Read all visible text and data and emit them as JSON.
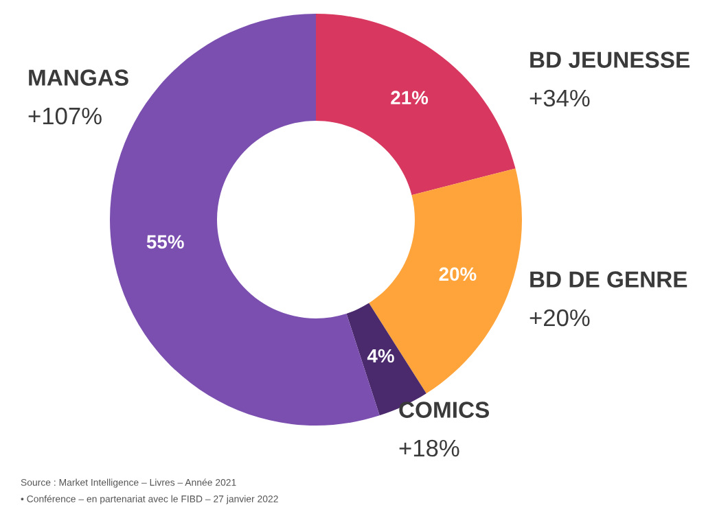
{
  "chart_data": {
    "type": "donut",
    "categories": [
      "BD JEUNESSE",
      "BD DE GENRE",
      "COMICS",
      "MANGAS"
    ],
    "values": [
      21,
      20,
      4,
      55
    ],
    "colors": [
      "#d8385f",
      "#ffa43a",
      "#4a2a6c",
      "#7b4fb0"
    ],
    "data_labels": true,
    "value_labels": [
      "21%",
      "20%",
      "4%",
      "55%"
    ],
    "annotations": [
      "+34%",
      "+20%",
      "+18%",
      "+107%",
      "Source : Market Intelligence – Livres – Année 2021",
      "• Conférence – en partenariat avec le FIBD – 27 janvier 2022"
    ]
  }
}
